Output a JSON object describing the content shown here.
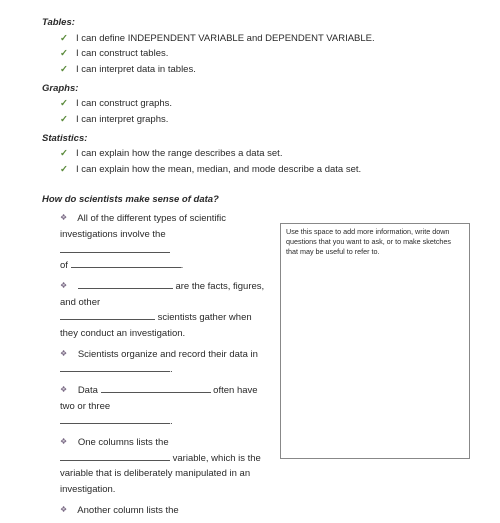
{
  "sections": {
    "tables": {
      "title": "Tables:",
      "items": [
        "I can define INDEPENDENT VARIABLE and DEPENDENT VARIABLE.",
        "I can construct tables.",
        "I can interpret data in tables."
      ]
    },
    "graphs": {
      "title": "Graphs:",
      "items": [
        "I can construct graphs.",
        "I can interpret graphs."
      ]
    },
    "statistics": {
      "title": "Statistics:",
      "items": [
        "I can explain how the range describes a data set.",
        "I can explain how the mean, median, and mode describe a data set."
      ]
    }
  },
  "question": "How do scientists make sense of data?",
  "fill": {
    "p1a": "All of the different types of scientific investigations involve the ",
    "p1b": "of ",
    "p1c": ".",
    "p2a": "",
    "p2b": " are the facts, figures, and other ",
    "p2c": " scientists gather when they conduct an investigation.",
    "p3a": "Scientists organize and record their data in ",
    "p3b": ".",
    "p4a": "Data ",
    "p4b": " often have two or three ",
    "p4c": ".",
    "p5a": "One columns lists the ",
    "p5b": " variable, which is the variable that is deliberately manipulated in an investigation.",
    "p6a": "Another column lists the"
  },
  "notebox": "Use this space to add more information, write down questions that you want to ask, or to make sketches that may be useful to refer to."
}
